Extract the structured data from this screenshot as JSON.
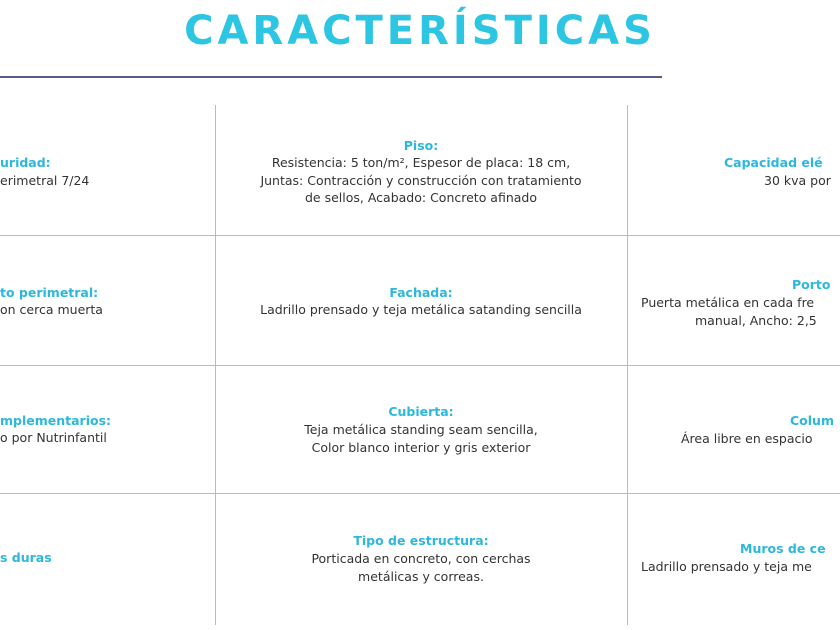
{
  "header": {
    "title": "CARACTERÍSTICAS"
  },
  "table": {
    "rows": [
      [
        {
          "heading": "uridad:",
          "lines": [
            "erimetral 7/24"
          ]
        },
        {
          "heading": "Piso:",
          "lines": [
            "Resistencia: 5 ton/m², Espesor de placa: 18 cm,",
            "Juntas: Contracción y construcción con tratamiento",
            "de sellos, Acabado: Concreto afinado"
          ]
        },
        {
          "heading": "Capacidad elé",
          "lines": [
            "30 kva por"
          ]
        }
      ],
      [
        {
          "heading": "to perimetral:",
          "lines": [
            "on cerca muerta"
          ]
        },
        {
          "heading": "Fachada:",
          "lines": [
            "Ladrillo prensado y teja metálica satanding sencilla"
          ]
        },
        {
          "heading": "Porto",
          "lines": [
            "Puerta metálica en cada fre",
            "manual, Ancho: 2,5"
          ]
        }
      ],
      [
        {
          "heading": "mplementarios:",
          "lines": [
            "o por Nutrinfantil"
          ]
        },
        {
          "heading": "Cubierta:",
          "lines": [
            "Teja metálica standing seam sencilla,",
            "Color blanco interior y gris exterior"
          ]
        },
        {
          "heading": "Colum",
          "lines": [
            "Área libre en espacio"
          ]
        }
      ],
      [
        {
          "heading": "s duras",
          "lines": []
        },
        {
          "heading": "Tipo de estructura:",
          "lines": [
            "Porticada en concreto, con cerchas",
            "metálicas y correas."
          ]
        },
        {
          "heading": "Muros de ce",
          "lines": [
            "Ladrillo prensado y teja me"
          ]
        }
      ]
    ]
  }
}
